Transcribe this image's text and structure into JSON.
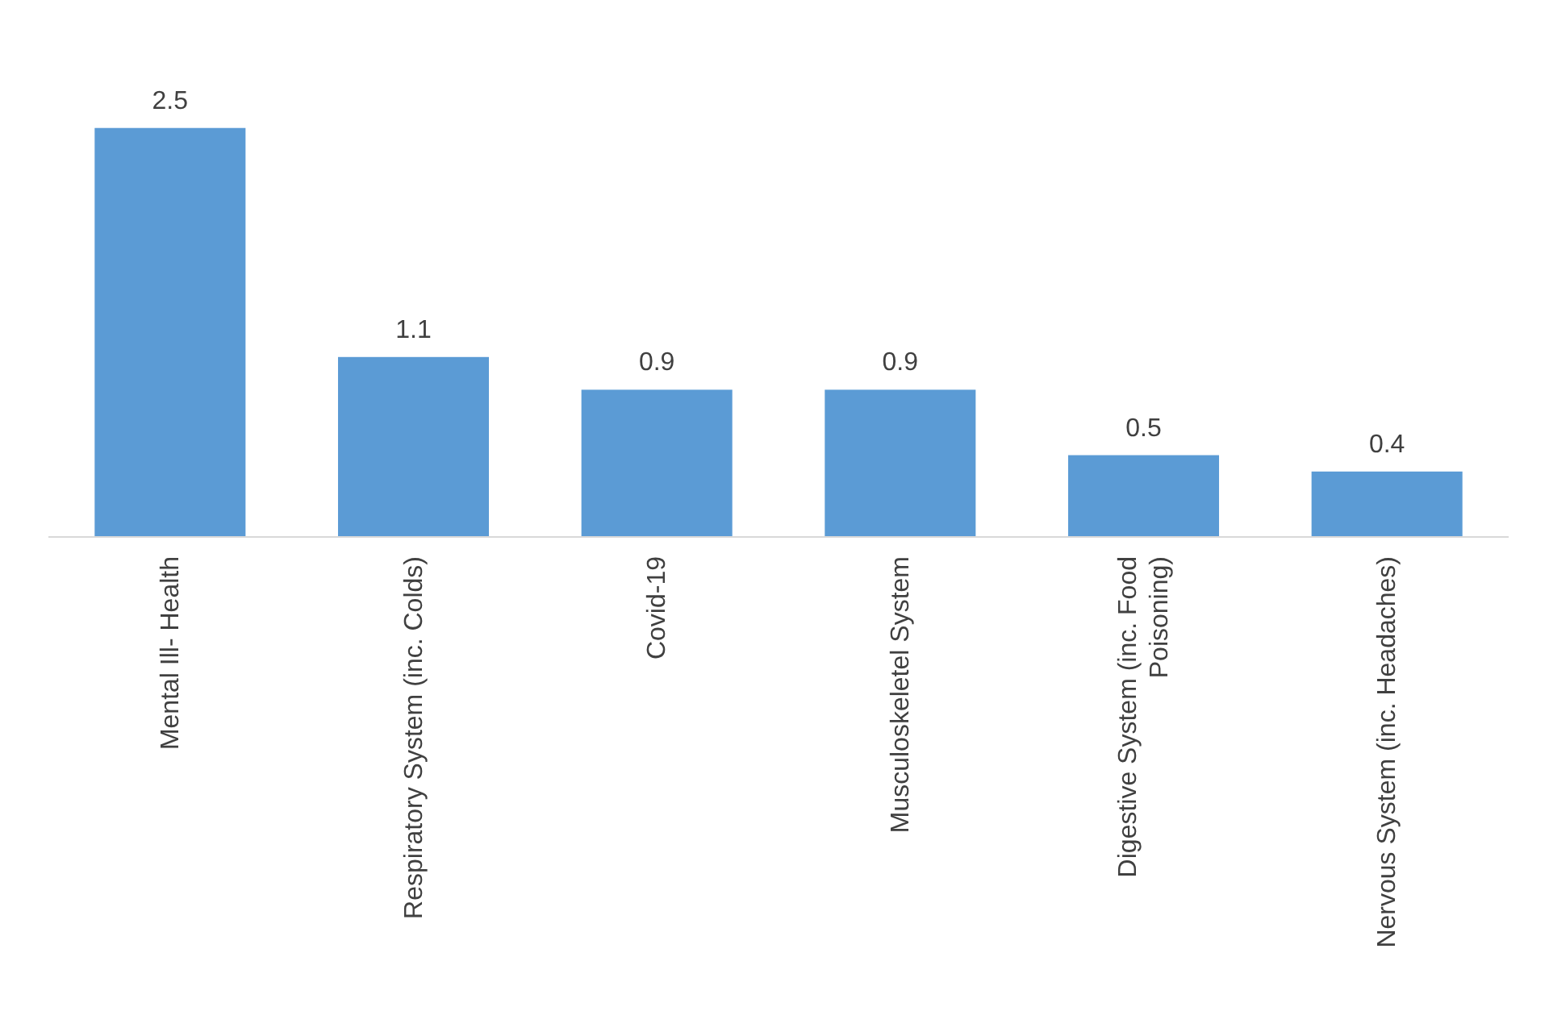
{
  "chart_data": {
    "type": "bar",
    "categories": [
      "Mental Ill- Health",
      "Respiratory System (inc. Colds)",
      "Covid-19",
      "Musculoskeletel System",
      "Digestive System (inc. Food Poisoning)",
      "Nervous System (inc. Headaches)"
    ],
    "values": [
      2.5,
      1.1,
      0.9,
      0.9,
      0.5,
      0.4
    ],
    "color": "#5b9bd5",
    "data_labels": true
  }
}
